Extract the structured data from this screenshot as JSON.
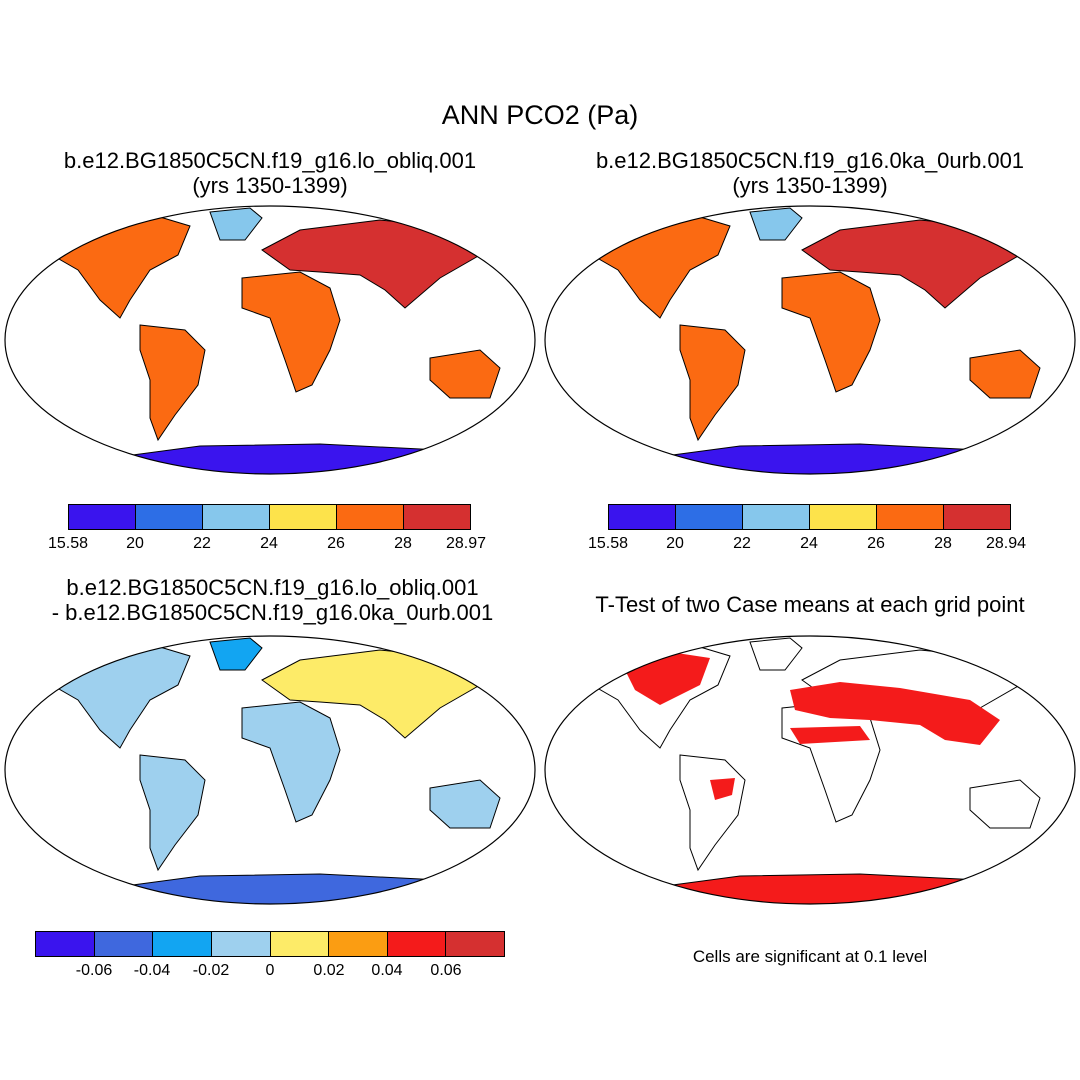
{
  "figure_title": "ANN PCO2 (Pa)",
  "panels": [
    {
      "title_line1": "b.e12.BG1850C5CN.f19_g16.lo_obliq.001",
      "title_line2": "(yrs 1350-1399)",
      "colorbar": {
        "colors": [
          "#3a14ee",
          "#2d6ee6",
          "#86c7ec",
          "#fde34b",
          "#fb6a12",
          "#d53030"
        ],
        "labels": [
          "15.58",
          "20",
          "22",
          "24",
          "26",
          "28",
          "28.97"
        ]
      }
    },
    {
      "title_line1": "b.e12.BG1850C5CN.f19_g16.0ka_0urb.001",
      "title_line2": "(yrs 1350-1399)",
      "colorbar": {
        "colors": [
          "#3a14ee",
          "#2d6ee6",
          "#86c7ec",
          "#fde34b",
          "#fb6a12",
          "#d53030"
        ],
        "labels": [
          "15.58",
          "20",
          "22",
          "24",
          "26",
          "28",
          "28.94"
        ]
      }
    },
    {
      "title_line1": "b.e12.BG1850C5CN.f19_g16.lo_obliq.001",
      "title_line2": "- b.e12.BG1850C5CN.f19_g16.0ka_0urb.001",
      "colorbar": {
        "colors": [
          "#3a14ee",
          "#3f68de",
          "#12a5f2",
          "#9ed0ee",
          "#fdeb68",
          "#fb9d12",
          "#f41b1b",
          "#d53030"
        ],
        "labels": [
          "-0.06",
          "-0.04",
          "-0.02",
          "0",
          "0.02",
          "0.04",
          "0.06"
        ]
      }
    },
    {
      "title_line1": "T-Test of two Case means at each grid point",
      "note": "Cells are significant at 0.1 level",
      "significant_color": "#f41b1b"
    }
  ]
}
